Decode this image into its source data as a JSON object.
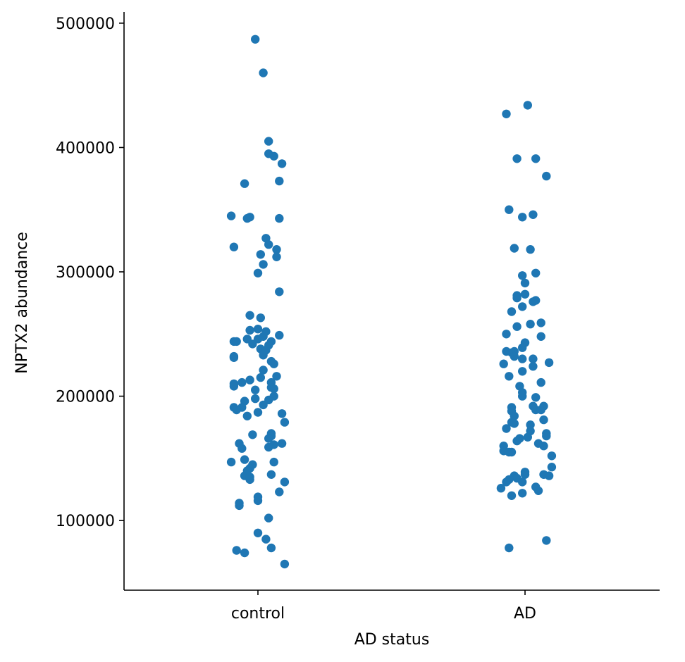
{
  "chart_data": {
    "type": "scatter",
    "title": "",
    "xlabel": "AD status",
    "ylabel": "NPTX2 abundance",
    "categories": [
      "control",
      "AD"
    ],
    "yticks": [
      100000,
      200000,
      300000,
      400000,
      500000
    ],
    "ytick_labels": [
      "100000",
      "200000",
      "300000",
      "400000",
      "500000"
    ],
    "ylim": [
      44000,
      509000
    ],
    "grid": false,
    "point_color": "#1f77b4",
    "series": [
      {
        "category": "control",
        "points": [
          [
            -0.01,
            487000
          ],
          [
            0.02,
            460000
          ],
          [
            0.04,
            405000
          ],
          [
            0.04,
            395000
          ],
          [
            0.06,
            393000
          ],
          [
            0.09,
            387000
          ],
          [
            -0.05,
            371000
          ],
          [
            0.08,
            373000
          ],
          [
            -0.1,
            345000
          ],
          [
            -0.03,
            344000
          ],
          [
            -0.04,
            343000
          ],
          [
            0.08,
            343000
          ],
          [
            0.03,
            327000
          ],
          [
            0.04,
            322000
          ],
          [
            -0.09,
            320000
          ],
          [
            0.07,
            318000
          ],
          [
            0.01,
            314000
          ],
          [
            0.07,
            312000
          ],
          [
            0.02,
            306000
          ],
          [
            0.0,
            299000
          ],
          [
            0.08,
            284000
          ],
          [
            -0.03,
            265000
          ],
          [
            0.01,
            263000
          ],
          [
            -0.03,
            253000
          ],
          [
            0.0,
            254000
          ],
          [
            0.03,
            252000
          ],
          [
            0.02,
            248000
          ],
          [
            0.08,
            249000
          ],
          [
            -0.04,
            246000
          ],
          [
            0.0,
            246000
          ],
          [
            -0.09,
            244000
          ],
          [
            -0.08,
            244000
          ],
          [
            0.05,
            244000
          ],
          [
            -0.02,
            242000
          ],
          [
            0.04,
            241000
          ],
          [
            0.01,
            238000
          ],
          [
            0.03,
            237000
          ],
          [
            0.02,
            233000
          ],
          [
            -0.09,
            232000
          ],
          [
            -0.09,
            231000
          ],
          [
            0.05,
            228000
          ],
          [
            0.06,
            226000
          ],
          [
            0.02,
            221000
          ],
          [
            0.07,
            216000
          ],
          [
            0.01,
            215000
          ],
          [
            -0.03,
            213000
          ],
          [
            -0.06,
            211000
          ],
          [
            0.05,
            211000
          ],
          [
            -0.09,
            210000
          ],
          [
            -0.09,
            208000
          ],
          [
            0.05,
            207000
          ],
          [
            0.06,
            206000
          ],
          [
            -0.01,
            205000
          ],
          [
            0.06,
            200000
          ],
          [
            -0.01,
            198000
          ],
          [
            0.04,
            197000
          ],
          [
            -0.05,
            196000
          ],
          [
            0.02,
            193000
          ],
          [
            -0.09,
            191000
          ],
          [
            -0.06,
            191000
          ],
          [
            -0.08,
            189000
          ],
          [
            0.0,
            187000
          ],
          [
            0.09,
            186000
          ],
          [
            -0.04,
            184000
          ],
          [
            0.1,
            179000
          ],
          [
            0.05,
            170000
          ],
          [
            -0.02,
            169000
          ],
          [
            0.05,
            168000
          ],
          [
            0.04,
            166000
          ],
          [
            -0.07,
            162000
          ],
          [
            0.09,
            162000
          ],
          [
            0.06,
            161000
          ],
          [
            0.04,
            159000
          ],
          [
            -0.06,
            158000
          ],
          [
            -0.05,
            149000
          ],
          [
            -0.1,
            147000
          ],
          [
            0.06,
            147000
          ],
          [
            -0.02,
            145000
          ],
          [
            -0.03,
            142000
          ],
          [
            -0.04,
            140000
          ],
          [
            0.05,
            137000
          ],
          [
            -0.05,
            136000
          ],
          [
            -0.03,
            135000
          ],
          [
            -0.03,
            133000
          ],
          [
            0.1,
            131000
          ],
          [
            0.08,
            123000
          ],
          [
            0.0,
            119000
          ],
          [
            0.0,
            116000
          ],
          [
            -0.07,
            114000
          ],
          [
            -0.07,
            112000
          ],
          [
            0.04,
            102000
          ],
          [
            0.0,
            90000
          ],
          [
            0.03,
            85000
          ],
          [
            0.05,
            78000
          ],
          [
            -0.08,
            76000
          ],
          [
            -0.05,
            74000
          ],
          [
            0.1,
            65000
          ]
        ]
      },
      {
        "category": "AD",
        "points": [
          [
            0.01,
            434000
          ],
          [
            -0.07,
            427000
          ],
          [
            -0.03,
            391000
          ],
          [
            0.04,
            391000
          ],
          [
            0.08,
            377000
          ],
          [
            -0.06,
            350000
          ],
          [
            0.03,
            346000
          ],
          [
            -0.01,
            344000
          ],
          [
            -0.04,
            319000
          ],
          [
            0.02,
            318000
          ],
          [
            0.04,
            299000
          ],
          [
            -0.01,
            297000
          ],
          [
            0.0,
            291000
          ],
          [
            0.0,
            282000
          ],
          [
            -0.03,
            281000
          ],
          [
            -0.03,
            279000
          ],
          [
            0.04,
            277000
          ],
          [
            0.03,
            276000
          ],
          [
            -0.01,
            272000
          ],
          [
            -0.05,
            268000
          ],
          [
            -0.03,
            256000
          ],
          [
            0.06,
            259000
          ],
          [
            0.02,
            258000
          ],
          [
            0.06,
            248000
          ],
          [
            -0.07,
            250000
          ],
          [
            0.0,
            243000
          ],
          [
            -0.01,
            239000
          ],
          [
            -0.07,
            236000
          ],
          [
            -0.05,
            235000
          ],
          [
            -0.04,
            236000
          ],
          [
            -0.04,
            232000
          ],
          [
            -0.01,
            230000
          ],
          [
            0.03,
            230000
          ],
          [
            0.09,
            227000
          ],
          [
            -0.08,
            226000
          ],
          [
            0.03,
            224000
          ],
          [
            -0.01,
            220000
          ],
          [
            -0.06,
            216000
          ],
          [
            0.06,
            211000
          ],
          [
            -0.02,
            208000
          ],
          [
            -0.01,
            203000
          ],
          [
            -0.01,
            200000
          ],
          [
            0.04,
            199000
          ],
          [
            0.07,
            192000
          ],
          [
            0.03,
            192000
          ],
          [
            -0.05,
            191000
          ],
          [
            0.04,
            189000
          ],
          [
            0.06,
            189000
          ],
          [
            -0.05,
            188000
          ],
          [
            -0.04,
            184000
          ],
          [
            0.07,
            181000
          ],
          [
            -0.05,
            179000
          ],
          [
            -0.04,
            178000
          ],
          [
            0.02,
            177000
          ],
          [
            -0.07,
            174000
          ],
          [
            0.02,
            172000
          ],
          [
            0.08,
            170000
          ],
          [
            0.08,
            168000
          ],
          [
            0.01,
            167000
          ],
          [
            -0.02,
            166000
          ],
          [
            -0.03,
            164000
          ],
          [
            0.05,
            162000
          ],
          [
            0.07,
            160000
          ],
          [
            -0.08,
            160000
          ],
          [
            -0.08,
            156000
          ],
          [
            -0.06,
            155000
          ],
          [
            -0.05,
            155000
          ],
          [
            0.1,
            152000
          ],
          [
            0.1,
            143000
          ],
          [
            0.0,
            139000
          ],
          [
            0.0,
            137000
          ],
          [
            0.07,
            137000
          ],
          [
            0.09,
            136000
          ],
          [
            -0.04,
            136000
          ],
          [
            -0.03,
            134000
          ],
          [
            -0.06,
            133000
          ],
          [
            -0.07,
            131000
          ],
          [
            -0.01,
            131000
          ],
          [
            0.04,
            127000
          ],
          [
            -0.09,
            126000
          ],
          [
            0.05,
            124000
          ],
          [
            -0.01,
            122000
          ],
          [
            -0.05,
            120000
          ],
          [
            0.08,
            84000
          ],
          [
            -0.06,
            78000
          ]
        ]
      }
    ]
  }
}
